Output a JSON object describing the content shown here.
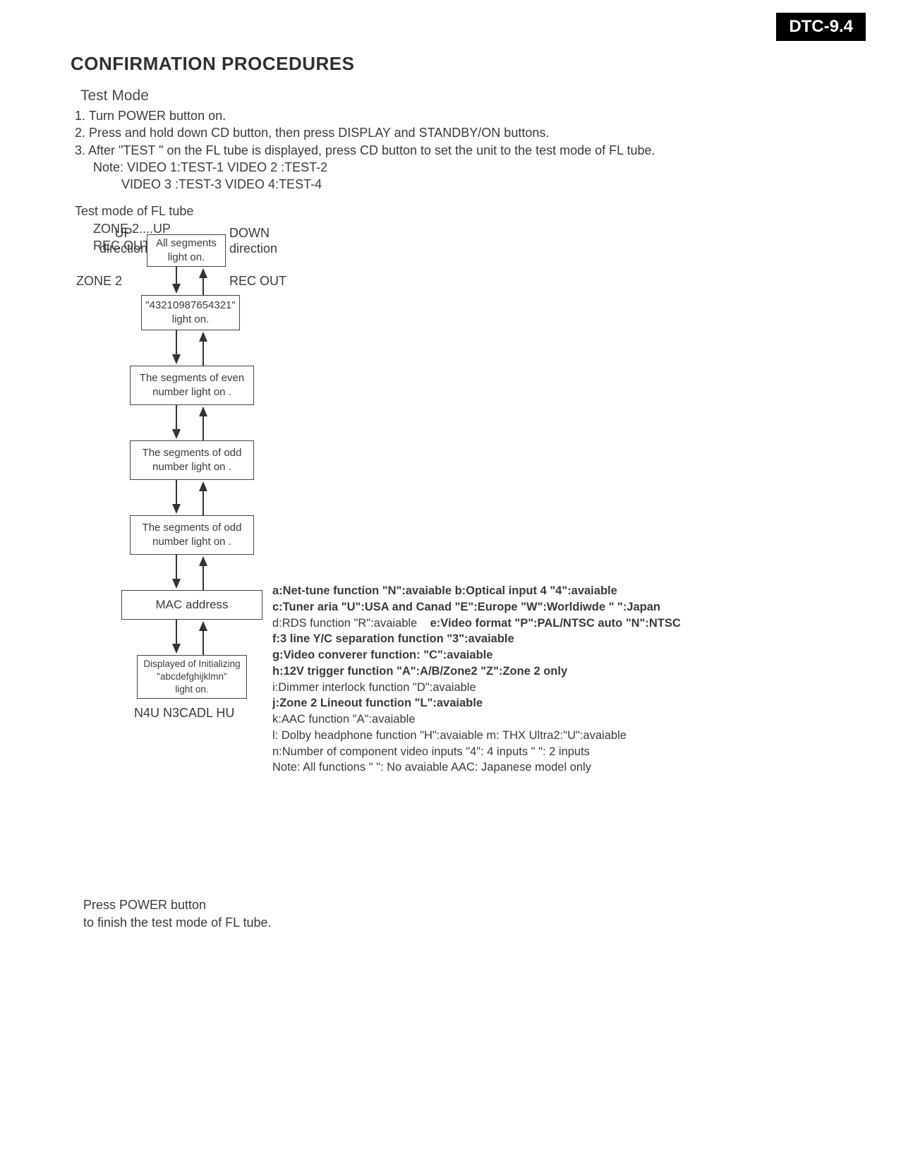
{
  "header": {
    "tag": "DTC-9.4"
  },
  "title": "CONFIRMATION PROCEDURES",
  "subtitle": "Test Mode",
  "steps": {
    "s1": "1. Turn POWER button on.",
    "s2": "2. Press and hold down CD button, then press DISPLAY and STANDBY/ON  buttons.",
    "s3": "3. After \"TEST    \" on the FL tube is displayed, press CD button to set the unit to the test mode of FL tube.",
    "note1": "Note: VIDEO 1:TEST-1  VIDEO 2 :TEST-2",
    "note2": "VIDEO 3 :TEST-3  VIDEO 4:TEST-4"
  },
  "flmode": {
    "h": "Test mode of FL tube",
    "z": "ZONE 2....UP",
    "r": "REC OUT......DOWN"
  },
  "flow": {
    "labels": {
      "up1": "UP",
      "up2": "direction",
      "down1": "DOWN",
      "down2": "direction",
      "zone": "ZONE 2",
      "rec": "REC OUT"
    },
    "boxes": {
      "b0": "All segments\nlight on.",
      "b1": "\"43210987654321\"\nlight on.",
      "b2": "The segments of even\nnumber light on .",
      "b3": "The segments of odd\nnumber light on .",
      "b4": "The segments of odd\nnumber light on .",
      "b5": "MAC address",
      "b6": "Displayed of Initializing\n\"abcdefghijklmn\"\nlight on."
    },
    "caption": "N4U  N3CADL  HU",
    "style": {
      "box_border_color": "#444444",
      "text_color": "#3a3a3a",
      "arrow_color": "#333333",
      "background": "#ffffff"
    }
  },
  "legend": {
    "l1": "a:Net-tune function \"N\":avaiable  b:Optical input 4 \"4\":avaiable",
    "l2": "c:Tuner aria \"U\":USA and Canad \"E\":Europe \"W\":Worldiwde \"   \":Japan",
    "l3a": "d:RDS function \"R\":avaiable",
    "l3b": "e:Video format \"P\":PAL/NTSC auto \"N\":NTSC",
    "l4": "f:3 line Y/C separation function \"3\":avaiable",
    "l5": "g:Video converer function: \"C\":avaiable",
    "l6": "h:12V trigger function \"A\":A/B/Zone2 \"Z\":Zone 2 only",
    "l7": "i:Dimmer interlock function \"D\":avaiable",
    "l8": "j:Zone 2 Lineout function  \"L\":avaiable",
    "l9": "k:AAC function \"A\":avaiable",
    "l10": "l: Dolby headphone function \"H\":avaiable m: THX Ultra2:\"U\":avaiable",
    "l11": "n:Number of component video inputs  \"4\": 4 inputs  \"  \": 2 inputs",
    "l12": "Note: All functions \"   \": No avaiable   AAC: Japanese model only"
  },
  "footer": {
    "f1": "Press POWER button",
    "f2": "to finish the test mode of FL tube."
  }
}
